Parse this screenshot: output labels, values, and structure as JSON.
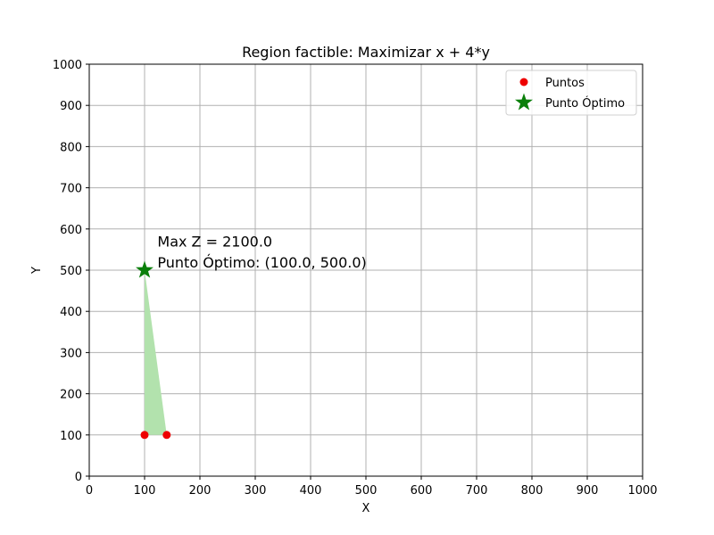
{
  "chart_data": {
    "type": "scatter",
    "title": "Region factible: Maximizar x + 4*y",
    "xlabel": "X",
    "ylabel": "Y",
    "xlim": [
      0,
      1000
    ],
    "ylim": [
      0,
      1000
    ],
    "xticks": [
      0,
      100,
      200,
      300,
      400,
      500,
      600,
      700,
      800,
      900,
      1000
    ],
    "yticks": [
      0,
      100,
      200,
      300,
      400,
      500,
      600,
      700,
      800,
      900,
      1000
    ],
    "grid": true,
    "legend_position": "top-right",
    "feasible_region": {
      "vertices": [
        [
          100,
          100
        ],
        [
          140,
          100
        ],
        [
          100,
          500
        ]
      ],
      "color": "#b2e2ad"
    },
    "series": [
      {
        "name": "Puntos",
        "marker": "circle",
        "color": "#ee0000",
        "points": [
          [
            100,
            100
          ],
          [
            140,
            100
          ]
        ]
      },
      {
        "name": "Punto Óptimo",
        "marker": "star",
        "color": "#0a7f0a",
        "points": [
          [
            100,
            500
          ]
        ]
      }
    ],
    "annotations": [
      {
        "text": "Max Z = 2100.0",
        "x": 120,
        "y": 570
      },
      {
        "text": "Punto Óptimo: (100.0, 500.0)",
        "x": 120,
        "y": 520
      }
    ]
  }
}
